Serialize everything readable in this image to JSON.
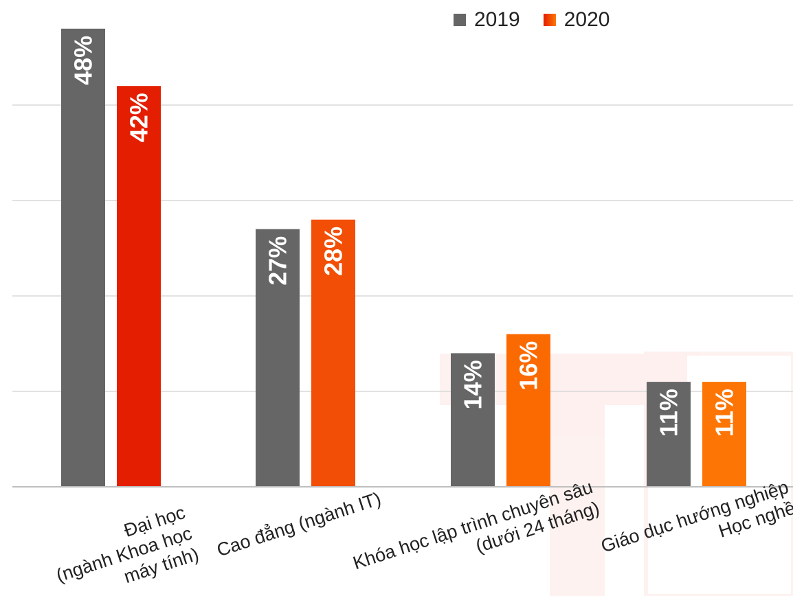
{
  "chart_data": {
    "type": "bar",
    "categories": [
      [
        "Đại học",
        "(ngành Khoa học",
        "máy tính)"
      ],
      [
        "Cao đẳng (ngành IT)"
      ],
      [
        "Khóa học lập trình chuyên sâu",
        "(dưới 24 tháng)"
      ],
      [
        "Giáo dục hướng nghiệp",
        "Học nghề"
      ]
    ],
    "series": [
      {
        "name": "2019",
        "values": [
          48,
          27,
          14,
          11
        ],
        "labels": [
          "48%",
          "27%",
          "14%",
          "11%"
        ],
        "colors": [
          "#666666",
          "#666666",
          "#666666",
          "#666666"
        ]
      },
      {
        "name": "2020",
        "values": [
          42,
          28,
          16,
          11
        ],
        "labels": [
          "42%",
          "28%",
          "16%",
          "11%"
        ],
        "colors": [
          "#e41e00",
          "#f24e05",
          "#fb6a00",
          "#fd7605"
        ]
      }
    ],
    "legend_position": "top-right",
    "ylim": [
      0,
      50
    ],
    "grid": true
  },
  "legend": {
    "items": [
      {
        "label": "2019",
        "color": "#666666"
      },
      {
        "label": "2020",
        "color": "#f24e05"
      }
    ]
  }
}
